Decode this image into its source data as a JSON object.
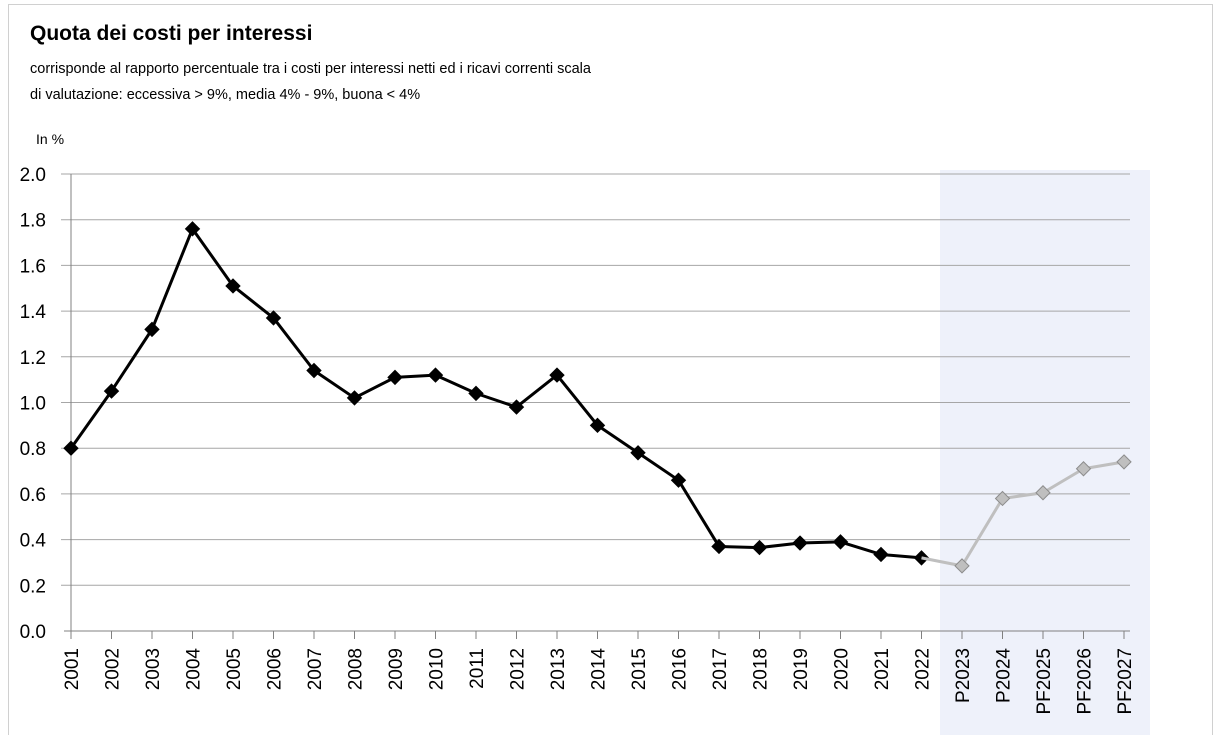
{
  "chart_data": {
    "type": "line",
    "title": "Quota dei costi per interessi",
    "subtitle_line1": "corrisponde al rapporto percentuale tra i costi per interessi netti ed i ricavi correnti  scala",
    "subtitle_line2": "di valutazione: eccessiva > 9%, media 4% - 9%, buona < 4%",
    "ylabel": "In %",
    "ylim": [
      0,
      2.0
    ],
    "yticks": [
      "0.0",
      "0.2",
      "0.4",
      "0.6",
      "0.8",
      "1.0",
      "1.2",
      "1.4",
      "1.6",
      "1.8",
      "2.0"
    ],
    "grid": true,
    "categories": [
      "2001",
      "2002",
      "2003",
      "2004",
      "2005",
      "2006",
      "2007",
      "2008",
      "2009",
      "2010",
      "2011",
      "2012",
      "2013",
      "2014",
      "2015",
      "2016",
      "2017",
      "2018",
      "2019",
      "2020",
      "2021",
      "2022",
      "P2023",
      "P2024",
      "PF2025",
      "PF2026",
      "PF2027"
    ],
    "series": [
      {
        "values": [
          0.8,
          1.05,
          1.32,
          1.76,
          1.51,
          1.37,
          1.14,
          1.02,
          1.11,
          1.12,
          1.04,
          0.98,
          1.12,
          0.9,
          0.78,
          0.66,
          0.37,
          0.365,
          0.385,
          0.39,
          0.335,
          0.32,
          null,
          null,
          null,
          null,
          null
        ],
        "color": "#000000"
      },
      {
        "values": [
          null,
          null,
          null,
          null,
          null,
          null,
          null,
          null,
          null,
          null,
          null,
          null,
          null,
          null,
          null,
          null,
          null,
          null,
          null,
          null,
          null,
          0.32,
          0.285,
          0.58,
          0.605,
          0.71,
          0.74
        ],
        "color": "#bfbfbf"
      }
    ],
    "forecast_band_color": "#eef1fa"
  }
}
